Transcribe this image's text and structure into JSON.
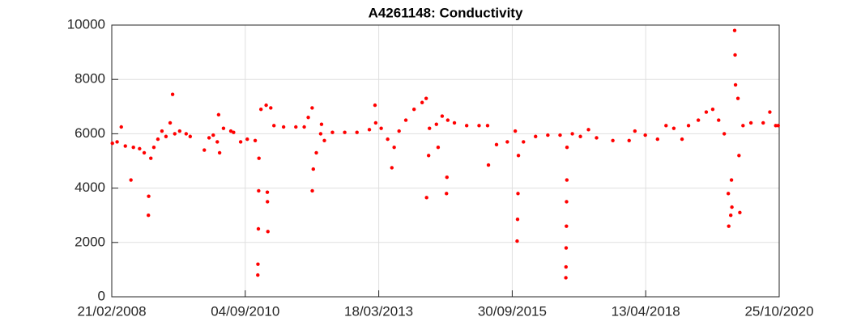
{
  "chart_data": {
    "type": "scatter",
    "title": "A4261148: Conductivity",
    "color": "#ff0000",
    "grid": true,
    "xlim": [
      "2008-02-21",
      "2020-10-25"
    ],
    "xticks": [
      {
        "value": "2008-02-21",
        "label": "21/02/2008"
      },
      {
        "value": "2010-09-04",
        "label": "04/09/2010"
      },
      {
        "value": "2013-03-18",
        "label": "18/03/2013"
      },
      {
        "value": "2015-09-30",
        "label": "30/09/2015"
      },
      {
        "value": "2018-04-13",
        "label": "13/04/2018"
      },
      {
        "value": "2020-10-25",
        "label": "25/10/2020"
      }
    ],
    "ylim": [
      0,
      10000
    ],
    "yticks": [
      0,
      2000,
      4000,
      6000,
      8000,
      10000
    ],
    "x": [
      "2008-02-25",
      "2008-03-29",
      "2008-04-27",
      "2008-05-25",
      "2008-07-03",
      "2008-07-20",
      "2008-09-01",
      "2008-10-03",
      "2008-11-01",
      "2008-11-03",
      "2008-11-18",
      "2008-12-09",
      "2009-01-06",
      "2009-02-03",
      "2009-03-03",
      "2009-04-01",
      "2009-04-18",
      "2009-05-03",
      "2009-06-06",
      "2009-07-21",
      "2009-08-18",
      "2009-11-24",
      "2009-12-27",
      "2010-01-25",
      "2010-02-22",
      "2010-03-03",
      "2010-03-10",
      "2010-04-06",
      "2010-05-27",
      "2010-06-15",
      "2010-08-03",
      "2010-09-18",
      "2010-11-12",
      "2010-11-30",
      "2010-12-01",
      "2010-12-04",
      "2010-12-06",
      "2010-12-08",
      "2010-12-22",
      "2011-01-27",
      "2011-02-28",
      "2011-02-08",
      "2011-02-05",
      "2011-02-04",
      "2011-03-22",
      "2011-05-28",
      "2011-08-21",
      "2011-10-18",
      "2011-11-15",
      "2011-12-12",
      "2011-12-13",
      "2011-12-20",
      "2012-01-10",
      "2012-02-09",
      "2012-02-15",
      "2012-03-06",
      "2012-05-01",
      "2012-07-25",
      "2012-10-18",
      "2013-01-12",
      "2013-02-20",
      "2013-02-25",
      "2013-04-04",
      "2013-05-19",
      "2013-06-17",
      "2013-07-03",
      "2013-08-06",
      "2013-09-22",
      "2013-11-18",
      "2014-01-13",
      "2014-02-10",
      "2014-02-13",
      "2014-02-27",
      "2014-03-05",
      "2014-04-22",
      "2014-05-04",
      "2014-06-01",
      "2014-07-01",
      "2014-07-04",
      "2014-07-10",
      "2014-08-25",
      "2014-11-18",
      "2015-02-12",
      "2015-04-18",
      "2015-04-12",
      "2015-06-13",
      "2015-08-27",
      "2015-10-21",
      "2015-11-03",
      "2015-11-06",
      "2015-11-09",
      "2015-11-12",
      "2015-12-17",
      "2016-03-10",
      "2016-06-03",
      "2016-08-27",
      "2016-10-06",
      "2016-10-07",
      "2016-10-08",
      "2016-10-10",
      "2016-10-11",
      "2016-10-13",
      "2016-10-14",
      "2016-11-20",
      "2017-01-15",
      "2017-03-12",
      "2017-05-07",
      "2017-08-28",
      "2017-12-19",
      "2018-01-28",
      "2018-04-10",
      "2018-07-04",
      "2018-09-01",
      "2018-10-25",
      "2018-12-21",
      "2019-02-04",
      "2019-04-13",
      "2019-06-07",
      "2019-07-22",
      "2019-09-01",
      "2019-10-10",
      "2019-11-07",
      "2019-11-10",
      "2019-11-24",
      "2019-11-29",
      "2019-12-02",
      "2019-12-21",
      "2019-12-24",
      "2019-12-27",
      "2020-01-13",
      "2020-01-20",
      "2020-01-26",
      "2020-02-17",
      "2020-04-12",
      "2020-07-06",
      "2020-08-21",
      "2020-10-01",
      "2020-10-18"
    ],
    "values": [
      5650,
      5700,
      6250,
      5550,
      4300,
      5500,
      5450,
      5300,
      3000,
      3700,
      5100,
      5500,
      5800,
      6100,
      5900,
      6400,
      7450,
      6000,
      6100,
      6000,
      5900,
      5400,
      5850,
      5950,
      5700,
      6700,
      5300,
      6200,
      6100,
      6050,
      5700,
      5800,
      5750,
      800,
      1200,
      2500,
      3900,
      5100,
      6900,
      7050,
      6950,
      2400,
      3500,
      3850,
      6300,
      6250,
      6250,
      6250,
      6600,
      6950,
      3900,
      4700,
      5300,
      6000,
      6350,
      5750,
      6050,
      6050,
      6050,
      6150,
      7050,
      6400,
      6200,
      5800,
      4750,
      5500,
      6100,
      6500,
      6900,
      7150,
      7300,
      3650,
      5200,
      6200,
      6350,
      5500,
      6650,
      3800,
      4400,
      6500,
      6400,
      6300,
      6300,
      4850,
      6300,
      5600,
      5700,
      6100,
      2050,
      2850,
      3800,
      5200,
      5700,
      5900,
      5950,
      5950,
      700,
      1100,
      1800,
      2600,
      3500,
      4300,
      5500,
      6000,
      5900,
      6150,
      5850,
      5750,
      5750,
      6100,
      5950,
      5800,
      6300,
      6200,
      5800,
      6300,
      6500,
      6800,
      6900,
      6500,
      6000,
      3800,
      2600,
      3000,
      4300,
      3300,
      9800,
      8900,
      7800,
      7300,
      5200,
      3100,
      6300,
      6400,
      6400,
      6800,
      6300,
      6300
    ]
  }
}
